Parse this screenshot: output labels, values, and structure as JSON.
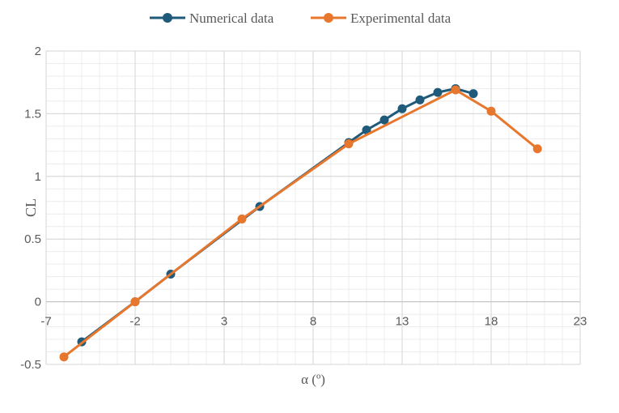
{
  "chart_data": {
    "type": "line",
    "title": "",
    "xlabel": "α (º)",
    "ylabel": "CL",
    "xlim": [
      -7,
      23
    ],
    "ylim": [
      -0.5,
      2
    ],
    "xticks": [
      -7,
      -2,
      3,
      8,
      13,
      18,
      23
    ],
    "yticks": [
      -0.5,
      0,
      0.5,
      1,
      1.5,
      2
    ],
    "xtick_labels": [
      "-7",
      "-2",
      "3",
      "8",
      "13",
      "18",
      "23"
    ],
    "ytick_labels": [
      "-0.5",
      "0",
      "0.5",
      "1",
      "1.5",
      "2"
    ],
    "grid": true,
    "legend_position": "top",
    "series": [
      {
        "name": "Numerical data",
        "color": "#1f5a7a",
        "x": [
          -5,
          -2,
          0,
          5,
          10,
          11,
          12,
          13,
          14,
          15,
          16,
          17
        ],
        "y": [
          -0.32,
          0.0,
          0.22,
          0.76,
          1.27,
          1.37,
          1.45,
          1.54,
          1.61,
          1.67,
          1.7,
          1.66
        ]
      },
      {
        "name": "Experimental data",
        "color": "#e8772e",
        "x": [
          -6.0,
          -2.0,
          4.0,
          10.0,
          16.0,
          18.0,
          20.6
        ],
        "y": [
          -0.44,
          0.0,
          0.66,
          1.26,
          1.69,
          1.52,
          1.22
        ]
      }
    ]
  }
}
